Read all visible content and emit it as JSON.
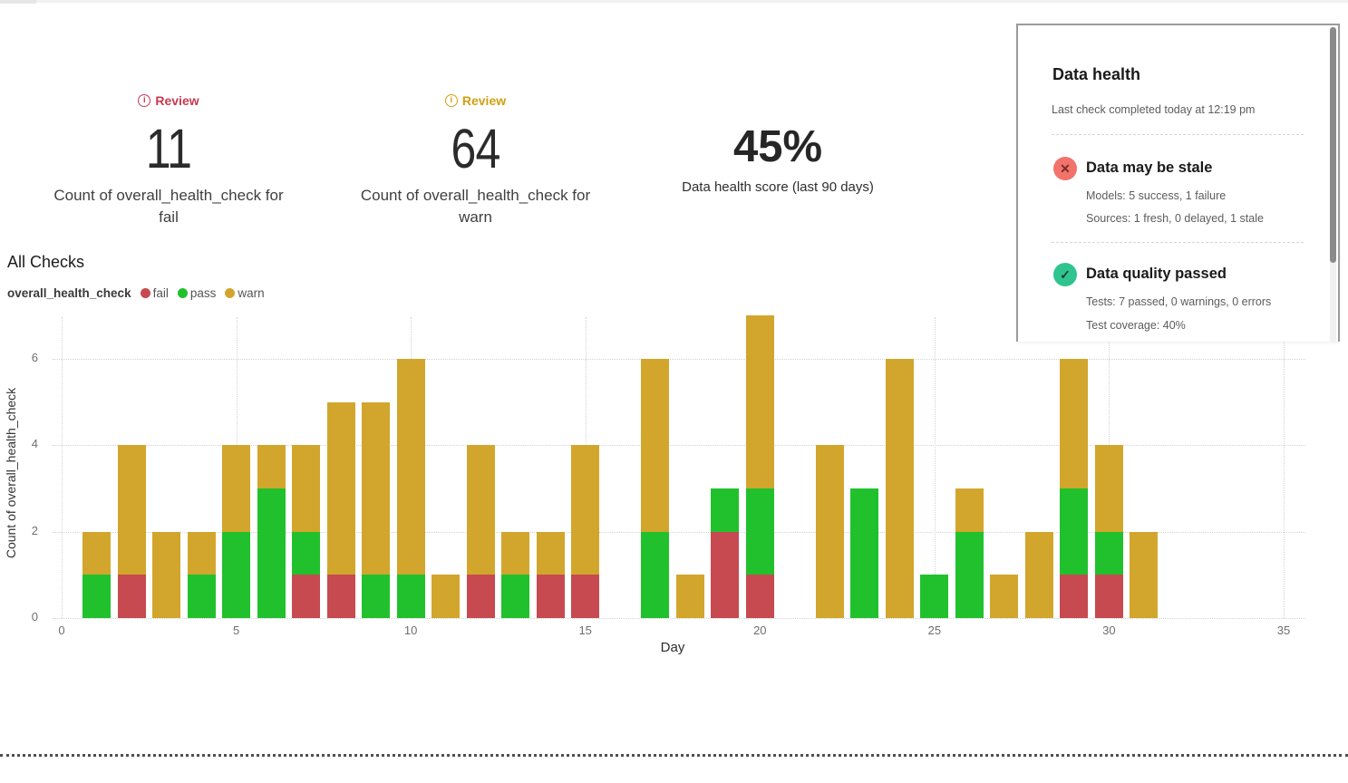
{
  "metrics": [
    {
      "icon": "info-icon",
      "badge": "Review",
      "badge_color": "#c63a52",
      "value": "11",
      "label": "Count of overall_health_check for fail"
    },
    {
      "icon": "info-icon",
      "badge": "Review",
      "badge_color": "#cfa013",
      "value": "64",
      "label": "Count of overall_health_check for warn"
    },
    {
      "value": "45%",
      "label": "Data health score (last 90 days)"
    }
  ],
  "legend": {
    "series_name": "overall_health_check"
  },
  "chart_data": {
    "type": "bar",
    "stacked": true,
    "title": "All Checks",
    "xlabel": "Day",
    "ylabel": "Count of overall_health_check",
    "xlim": [
      0,
      35
    ],
    "ylim": [
      0,
      7
    ],
    "x_ticks": [
      0,
      5,
      10,
      15,
      20,
      25,
      30,
      35
    ],
    "y_ticks": [
      0,
      2,
      4,
      6
    ],
    "grid": "dotted",
    "legend_position": "top-left",
    "x": [
      1,
      2,
      3,
      4,
      5,
      6,
      7,
      8,
      9,
      10,
      11,
      12,
      13,
      14,
      15,
      16,
      17,
      18,
      19,
      20,
      21,
      22,
      23,
      24,
      25,
      26,
      27,
      28,
      29,
      30,
      31
    ],
    "series": [
      {
        "name": "fail",
        "color": "#c64a50",
        "values": [
          0,
          1,
          0,
          0,
          0,
          0,
          1,
          1,
          0,
          0,
          0,
          1,
          0,
          1,
          1,
          0,
          0,
          0,
          2,
          1,
          0,
          0,
          0,
          0,
          0,
          0,
          0,
          0,
          1,
          1,
          0
        ]
      },
      {
        "name": "pass",
        "color": "#21c12d",
        "values": [
          1,
          0,
          0,
          1,
          2,
          3,
          1,
          0,
          1,
          1,
          0,
          0,
          1,
          0,
          0,
          0,
          2,
          0,
          1,
          2,
          0,
          0,
          3,
          0,
          1,
          2,
          0,
          0,
          2,
          1,
          0
        ]
      },
      {
        "name": "warn",
        "color": "#d2a62c",
        "values": [
          1,
          3,
          2,
          1,
          2,
          1,
          2,
          4,
          4,
          5,
          1,
          3,
          1,
          1,
          3,
          0,
          4,
          1,
          0,
          4,
          0,
          4,
          0,
          6,
          0,
          1,
          1,
          2,
          3,
          2,
          2
        ]
      }
    ]
  },
  "panel": {
    "title": "Data health",
    "subtitle": "Last check completed today at 12:19 pm",
    "statuses": [
      {
        "icon": "x-circle-icon",
        "icon_color": "#f2736c",
        "glyph": "✕",
        "glyph_color": "#7b2a26",
        "title": "Data may be stale",
        "lines": [
          "Models: 5 success, 1 failure",
          "Sources: 1 fresh, 0 delayed, 1 stale"
        ]
      },
      {
        "icon": "check-circle-icon",
        "icon_color": "#2ec48f",
        "glyph": "✓",
        "glyph_color": "#1d3b2f",
        "title": "Data quality passed",
        "lines": [
          "Tests: 7 passed, 0 warnings, 0 errors",
          "Test coverage: 40%"
        ]
      }
    ]
  }
}
